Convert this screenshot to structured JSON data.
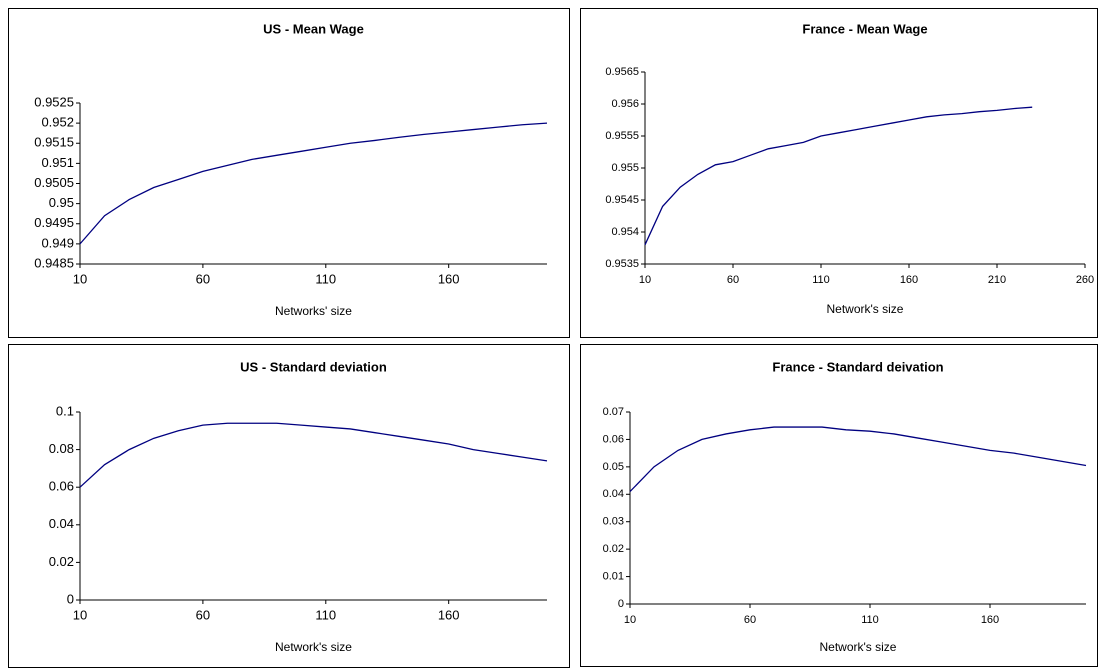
{
  "chart_data": [
    {
      "type": "line",
      "title": "US - Mean Wage",
      "x_label": "Networks' size",
      "color": "#000080",
      "x": [
        10,
        20,
        30,
        40,
        50,
        60,
        70,
        80,
        90,
        100,
        110,
        120,
        130,
        140,
        150,
        160,
        170,
        180,
        190,
        200
      ],
      "values": [
        0.949,
        0.9497,
        0.9501,
        0.9504,
        0.9506,
        0.9508,
        0.95095,
        0.9511,
        0.9512,
        0.9513,
        0.9514,
        0.9515,
        0.95157,
        0.95165,
        0.95172,
        0.95178,
        0.95184,
        0.9519,
        0.95196,
        0.952
      ],
      "xlim": [
        10,
        200
      ],
      "xticks": [
        10,
        60,
        110,
        160
      ],
      "ylim": [
        0.9485,
        0.9525
      ],
      "yticks": [
        0.9485,
        0.949,
        0.9495,
        0.95,
        0.9505,
        0.951,
        0.9515,
        0.952,
        0.9525
      ]
    },
    {
      "type": "line",
      "title": "France - Mean Wage",
      "x_label": "Network's size",
      "color": "#000080",
      "x": [
        10,
        20,
        30,
        40,
        50,
        60,
        70,
        80,
        90,
        100,
        110,
        120,
        130,
        140,
        150,
        160,
        170,
        180,
        190,
        200,
        210,
        220,
        230
      ],
      "values": [
        0.9538,
        0.9544,
        0.9547,
        0.9549,
        0.95505,
        0.9551,
        0.9552,
        0.9553,
        0.95535,
        0.9554,
        0.9555,
        0.95555,
        0.9556,
        0.95565,
        0.9557,
        0.95575,
        0.9558,
        0.95583,
        0.95585,
        0.95588,
        0.9559,
        0.95593,
        0.95595
      ],
      "xlim": [
        10,
        260
      ],
      "xticks": [
        10,
        60,
        110,
        160,
        210,
        260
      ],
      "ylim": [
        0.9535,
        0.9565
      ],
      "yticks": [
        0.9535,
        0.954,
        0.9545,
        0.955,
        0.9555,
        0.956,
        0.9565
      ]
    },
    {
      "type": "line",
      "title": "US - Standard deviation",
      "x_label": "Network's size",
      "color": "#000080",
      "x": [
        10,
        20,
        30,
        40,
        50,
        60,
        70,
        80,
        90,
        100,
        110,
        120,
        130,
        140,
        150,
        160,
        170,
        180,
        190,
        200
      ],
      "values": [
        0.06,
        0.072,
        0.08,
        0.086,
        0.09,
        0.093,
        0.094,
        0.094,
        0.094,
        0.093,
        0.092,
        0.091,
        0.089,
        0.087,
        0.085,
        0.083,
        0.08,
        0.078,
        0.076,
        0.074
      ],
      "xlim": [
        10,
        200
      ],
      "xticks": [
        10,
        60,
        110,
        160
      ],
      "ylim": [
        0,
        0.1
      ],
      "yticks": [
        0,
        0.02,
        0.04,
        0.06,
        0.08,
        0.1
      ]
    },
    {
      "type": "line",
      "title": "France - Standard deivation",
      "x_label": "Network's size",
      "color": "#000080",
      "x": [
        10,
        20,
        30,
        40,
        50,
        60,
        70,
        80,
        90,
        100,
        110,
        120,
        130,
        140,
        150,
        160,
        170,
        180,
        190,
        200
      ],
      "values": [
        0.041,
        0.05,
        0.056,
        0.06,
        0.062,
        0.0635,
        0.0645,
        0.0645,
        0.0645,
        0.0635,
        0.063,
        0.062,
        0.0605,
        0.059,
        0.0575,
        0.056,
        0.055,
        0.0535,
        0.052,
        0.0505
      ],
      "xlim": [
        10,
        200
      ],
      "xticks": [
        10,
        60,
        110,
        160
      ],
      "ylim": [
        0,
        0.07
      ],
      "yticks": [
        0,
        0.01,
        0.02,
        0.03,
        0.04,
        0.05,
        0.06,
        0.07
      ]
    }
  ]
}
